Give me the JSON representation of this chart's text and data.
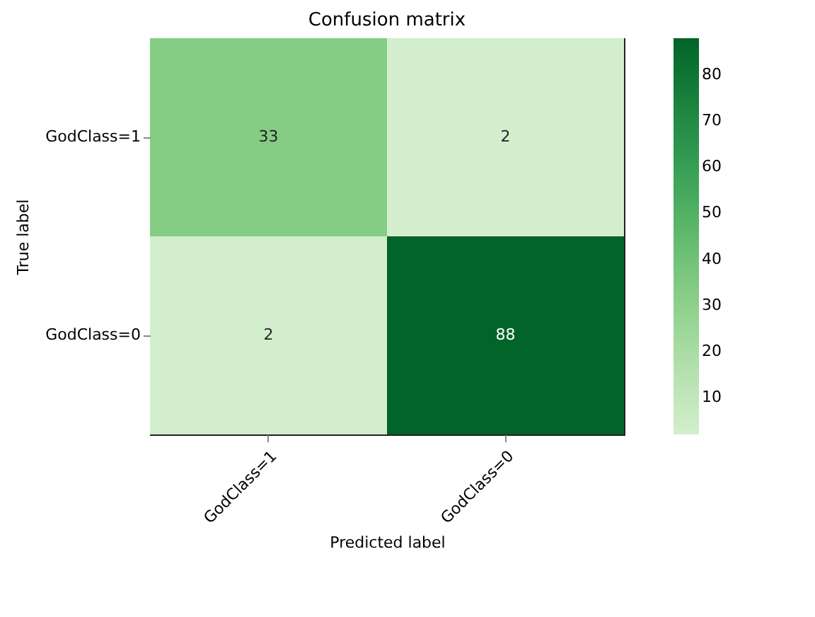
{
  "chart_data": {
    "type": "heatmap",
    "title": "Confusion matrix",
    "xlabel": "Predicted label",
    "ylabel": "True label",
    "categories": [
      "GodClass=1",
      "GodClass=0"
    ],
    "y_categories": [
      "GodClass=1",
      "GodClass=0"
    ],
    "cells": [
      [
        33,
        2
      ],
      [
        2,
        88
      ]
    ],
    "clim": [
      2,
      88
    ],
    "cticks": [
      10,
      20,
      30,
      40,
      50,
      60,
      70,
      80
    ],
    "data_labels": true
  }
}
